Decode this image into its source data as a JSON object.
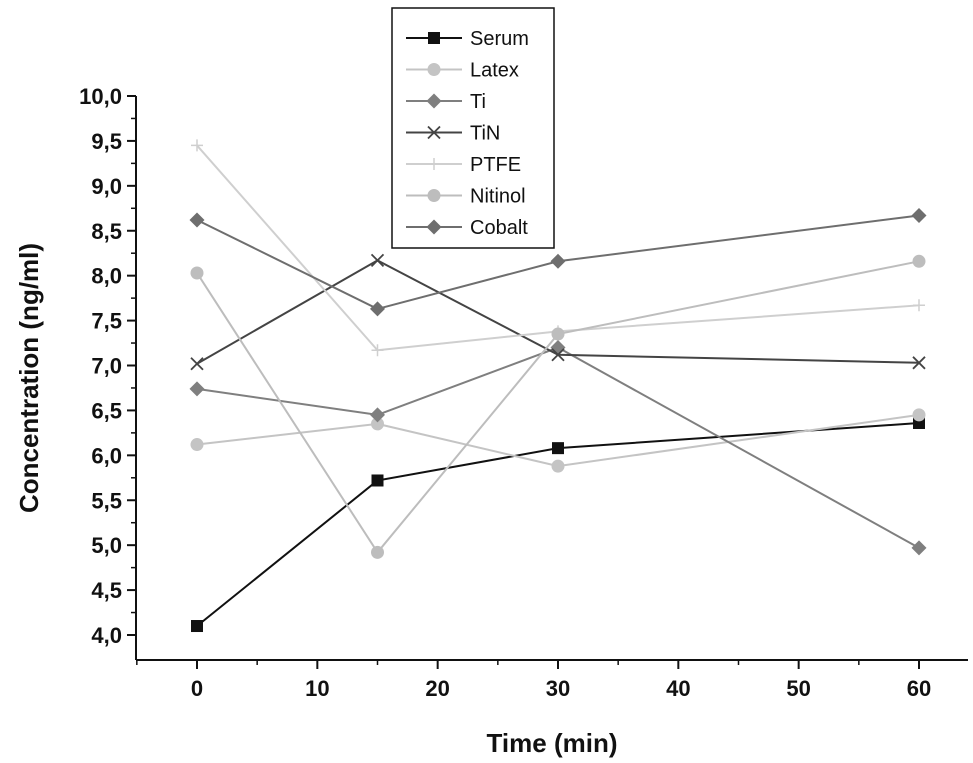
{
  "chart_data": {
    "type": "line",
    "title": "",
    "xlabel": "Time (min)",
    "ylabel": "Concentration (ng/ml)",
    "x": [
      0,
      15,
      30,
      60
    ],
    "xlim": [
      -5,
      64
    ],
    "ylim": [
      3.8,
      10.0
    ],
    "xticks": [
      0,
      10,
      20,
      30,
      40,
      50,
      60
    ],
    "yticks": [
      4.0,
      4.5,
      5.0,
      5.5,
      6.0,
      6.5,
      7.0,
      7.5,
      8.0,
      8.5,
      9.0,
      9.5,
      10.0
    ],
    "xtick_labels": [
      "0",
      "10",
      "20",
      "30",
      "40",
      "50",
      "60"
    ],
    "ytick_labels": [
      "4,0",
      "4,5",
      "5,0",
      "5,5",
      "6,0",
      "6,5",
      "7,0",
      "7,5",
      "8,0",
      "8,5",
      "9,0",
      "9,5",
      "10,0"
    ],
    "legend_position": "top-center",
    "grid": false,
    "series": [
      {
        "name": "Serum",
        "values": [
          4.1,
          5.72,
          6.08,
          6.36
        ],
        "color": "#111111",
        "marker": "square"
      },
      {
        "name": "Latex",
        "values": [
          6.12,
          6.35,
          5.88,
          6.45
        ],
        "color": "#c4c4c4",
        "marker": "circle"
      },
      {
        "name": "Ti",
        "values": [
          6.74,
          6.45,
          7.2,
          4.97
        ],
        "color": "#7f7f7f",
        "marker": "diamond"
      },
      {
        "name": "TiN",
        "values": [
          7.02,
          8.17,
          7.12,
          7.03
        ],
        "color": "#444444",
        "marker": "x"
      },
      {
        "name": "PTFE",
        "values": [
          9.45,
          7.17,
          7.38,
          7.67
        ],
        "color": "#cfcfcf",
        "marker": "plus"
      },
      {
        "name": "Nitinol",
        "values": [
          8.03,
          4.92,
          7.35,
          8.16
        ],
        "color": "#bdbdbd",
        "marker": "circle"
      },
      {
        "name": "Cobalt",
        "values": [
          8.62,
          7.63,
          8.16,
          8.67
        ],
        "color": "#6e6e6e",
        "marker": "diamond"
      }
    ]
  }
}
